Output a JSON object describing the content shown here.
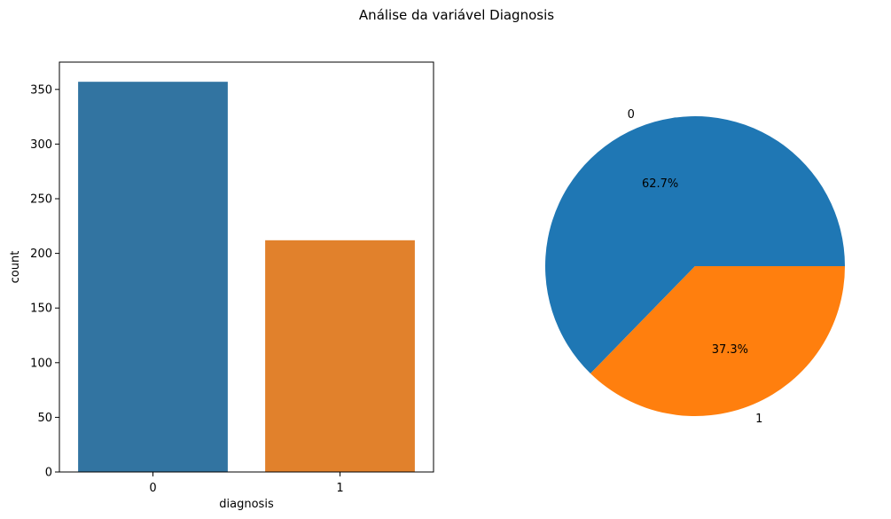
{
  "figure": {
    "suptitle": "Análise da variável Diagnosis"
  },
  "chart_data": [
    {
      "type": "bar",
      "title": "",
      "categories": [
        "0",
        "1"
      ],
      "values": [
        357,
        212
      ],
      "colors": [
        "#3274a1",
        "#e1812c"
      ],
      "xlabel": "diagnosis",
      "ylabel": "count",
      "ylim": [
        0,
        375
      ],
      "yticks": [
        0,
        50,
        100,
        150,
        200,
        250,
        300,
        350
      ],
      "grid": false
    },
    {
      "type": "pie",
      "title": "",
      "labels": [
        "0",
        "1"
      ],
      "values": [
        62.7,
        37.3
      ],
      "autopct": [
        "62.7%",
        "37.3%"
      ],
      "colors": [
        "#1f77b4",
        "#ff7f0e"
      ]
    }
  ]
}
